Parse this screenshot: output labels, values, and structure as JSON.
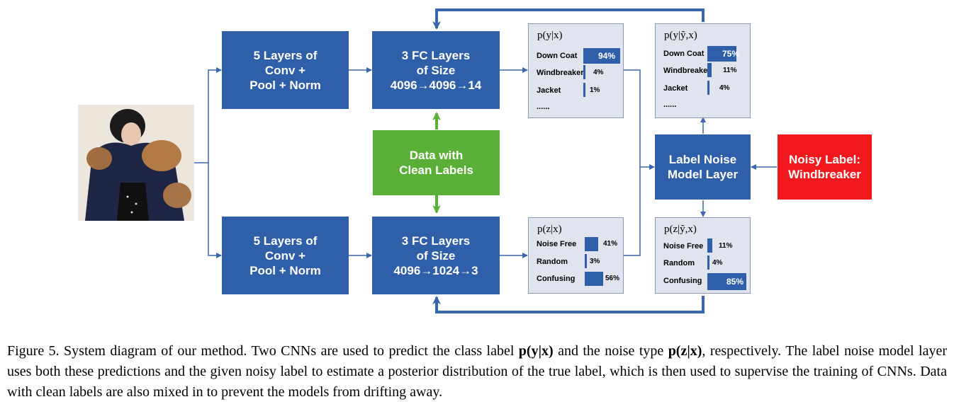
{
  "boxes": {
    "conv_top": "5 Layers of\nConv +\nPool + Norm",
    "fc_top": "3 FC Layers\nof Size\n4096→4096→14",
    "clean": "Data with\nClean Labels",
    "conv_bottom": "5 Layers of\nConv +\nPool + Norm",
    "fc_bottom": "3 FC Layers\nof Size\n4096→1024→3",
    "noise_layer": "Label Noise\nModel Layer",
    "noisy_label": "Noisy Label:\nWindbreaker"
  },
  "dists": {
    "py": {
      "title": "p(y|x)",
      "labels": [
        "Down Coat",
        "Windbreaker",
        "Jacket"
      ],
      "values": [
        94,
        4,
        1
      ],
      "texts": [
        "94%",
        "4%",
        "1%"
      ],
      "ellipsis": "......"
    },
    "pyy": {
      "title": "p(y|ỹ,x)",
      "labels": [
        "Down Coat",
        "Windbreaker",
        "Jacket"
      ],
      "values": [
        75,
        11,
        4
      ],
      "texts": [
        "75%",
        "11%",
        "4%"
      ],
      "ellipsis": "......"
    },
    "pz": {
      "title": "p(z|x)",
      "labels": [
        "Noise Free",
        "Random",
        "Confusing"
      ],
      "values": [
        41,
        3,
        56
      ],
      "texts": [
        "41%",
        "3%",
        "56%"
      ]
    },
    "pzy": {
      "title": "p(z|ỹ,x)",
      "labels": [
        "Noise Free",
        "Random",
        "Confusing"
      ],
      "values": [
        11,
        4,
        85
      ],
      "texts": [
        "11%",
        "4%",
        "85%"
      ]
    }
  },
  "caption": {
    "p1": "Figure 5. System diagram of our method. Two CNNs are used to predict the class label ",
    "f1": "p(y|x)",
    "p2": " and the noise type ",
    "f2": "p(z|x)",
    "p3": ", respectively. The label noise model layer uses both these predictions and the given noisy label to estimate a posterior distribution of the true label, which is then used to supervise the training of CNNs. Data with clean labels are also mixed in to prevent the models from drifting away."
  },
  "colors": {
    "box_blue": "#2f5fa8",
    "box_green": "#5aaf36",
    "box_red": "#f2191e",
    "panel_bg": "#dfe4ee",
    "line_blue": "#3a66ad"
  }
}
